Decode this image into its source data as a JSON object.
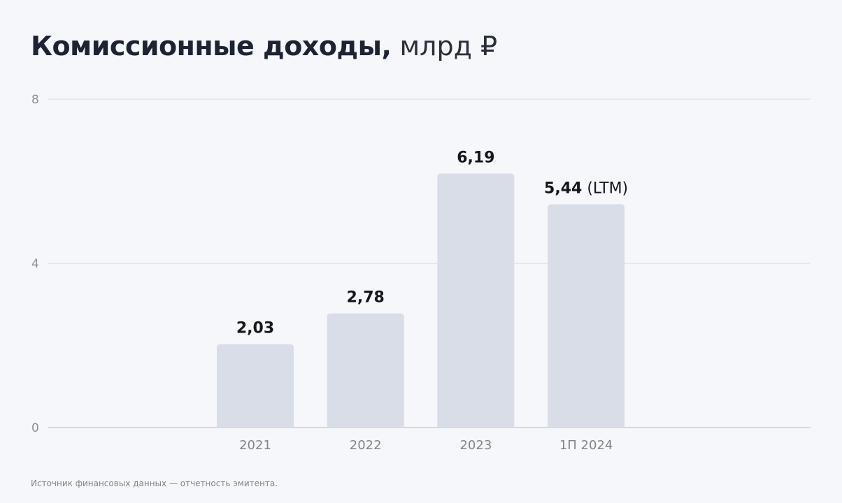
{
  "title": {
    "main": "Комиссионные доходы,",
    "unit": "млрд ₽"
  },
  "source_note": "Источник финансовых данных — отчетность эмитента.",
  "colors": {
    "bar": "#d8dde8",
    "grid": "#d6d8de",
    "axis": "#b7bac2",
    "background": "#f5f7fb"
  },
  "chart_data": {
    "type": "bar",
    "title": "Комиссионные доходы, млрд ₽",
    "categories": [
      "2021",
      "2022",
      "2023",
      "1П 2024"
    ],
    "values": [
      2.03,
      2.78,
      6.19,
      5.44
    ],
    "value_labels": [
      "2,03",
      "2,78",
      "6,19",
      "5,44"
    ],
    "value_label_suffixes": [
      "",
      "",
      "",
      " (LTM)"
    ],
    "ylim": [
      0,
      8
    ],
    "yticks": [
      0,
      4,
      8
    ],
    "ytick_labels": [
      "0",
      "4",
      "8"
    ],
    "grid": true
  }
}
